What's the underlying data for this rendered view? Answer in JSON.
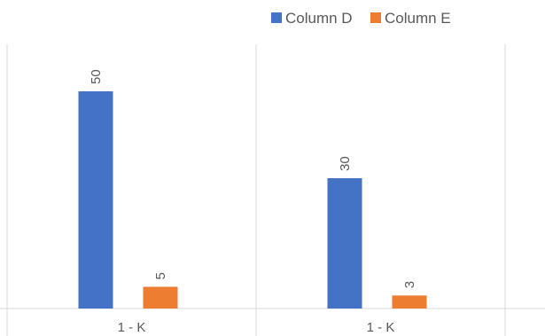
{
  "chart_data": {
    "type": "bar",
    "categories": [
      "1 - K",
      "1 - K"
    ],
    "series": [
      {
        "name": "Column D",
        "values": [
          50,
          30
        ],
        "color": "#4472C4"
      },
      {
        "name": "Column E",
        "values": [
          5,
          3
        ],
        "color": "#ED7D31"
      }
    ],
    "title": "",
    "xlabel": "",
    "ylabel": "",
    "ylim": [
      0,
      55
    ],
    "grid": "vertical category separators",
    "legend_position": "top-right",
    "data_labels": "rotated above bars"
  }
}
